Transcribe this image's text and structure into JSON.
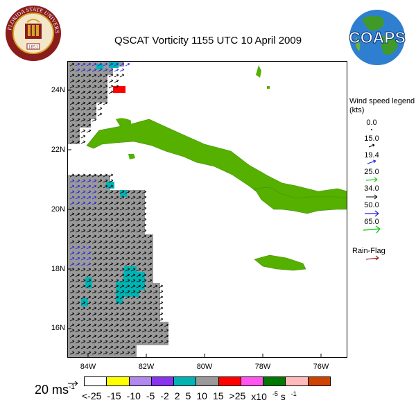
{
  "title": "QSCAT Vorticity 1155 UTC 10 April 2009",
  "logos": {
    "fsu_text": "FLORIDA STATE UNIVERSITY",
    "fsu_year": "1851",
    "coaps_text": "COAPS"
  },
  "map": {
    "lat_labels": [
      "24N",
      "22N",
      "20N",
      "18N",
      "16N"
    ],
    "lon_labels": [
      "84W",
      "82W",
      "80W",
      "78W",
      "76W"
    ],
    "lon_range": [
      -85.0,
      -75.0
    ],
    "lat_range": [
      15.0,
      25.0
    ],
    "land_color": "#55b000",
    "swath_color": "#999999"
  },
  "legend": {
    "title": "Wind speed legend (kts)",
    "entries": [
      {
        "value": "0.0",
        "color": "#000000"
      },
      {
        "value": "15.0",
        "color": "#000000"
      },
      {
        "value": "19.4",
        "color": "#000000"
      },
      {
        "value": "25.0",
        "color": "#2222dd"
      },
      {
        "value": "34.0",
        "color": "#22cc22"
      },
      {
        "value": "50.0",
        "color": "#000000"
      },
      {
        "value": "65.0",
        "color": "#2222dd"
      },
      {
        "value": "",
        "color": "#22cc22"
      }
    ],
    "rain_flag_label": "Rain-Flag",
    "rain_flag_color": "#880000"
  },
  "scale": {
    "speed": "20 ms",
    "exp": "-1"
  },
  "colorbar": {
    "colors": [
      "#ffffff",
      "#ffff00",
      "#b088ee",
      "#8833ee",
      "#00b4b4",
      "#999999",
      "#ff0000",
      "#ff55ee",
      "#007700",
      "#ffbbbb",
      "#cc4400"
    ],
    "labels": [
      "<-25",
      "-15",
      "-10",
      "-5",
      "-2",
      "2",
      "5",
      "10",
      "15",
      ">25"
    ],
    "units": "x10",
    "units_exp": "-5",
    "units_s": "s",
    "units_s_exp": "-1"
  }
}
